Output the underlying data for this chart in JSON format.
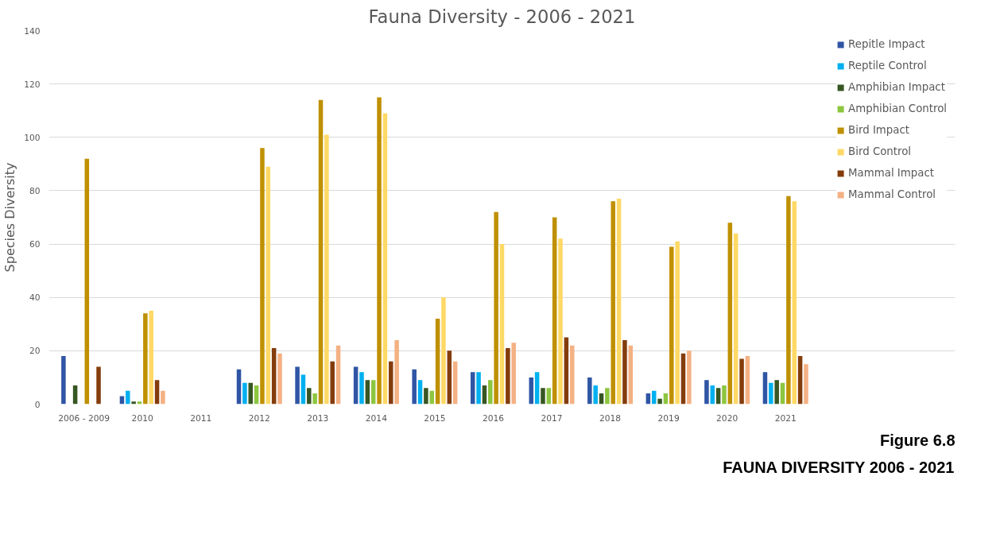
{
  "chart_data": {
    "type": "bar",
    "title": "Fauna Diversity - 2006 - 2021",
    "ylabel": "Species Diversity",
    "categories": [
      "2006 - 2009",
      "2010",
      "2011",
      "2012",
      "2013",
      "2014",
      "2015",
      "2016",
      "2017",
      "2018",
      "2019",
      "2020",
      "2021"
    ],
    "series": [
      {
        "name": "Repitle Impact",
        "color": "#2f55a4",
        "values": [
          18,
          3,
          0,
          13,
          14,
          14,
          13,
          12,
          10,
          10,
          4,
          9,
          12
        ]
      },
      {
        "name": "Reptile Control",
        "color": "#00b0f0",
        "values": [
          0,
          5,
          0,
          8,
          11,
          12,
          9,
          12,
          12,
          7,
          5,
          7,
          8
        ]
      },
      {
        "name": "Amphibian Impact",
        "color": "#375623",
        "values": [
          7,
          1,
          0,
          8,
          6,
          9,
          6,
          7,
          6,
          4,
          2,
          6,
          9
        ]
      },
      {
        "name": "Amphibian Control",
        "color": "#8dc63f",
        "values": [
          0,
          1,
          0,
          7,
          4,
          9,
          5,
          9,
          6,
          6,
          4,
          7,
          8
        ]
      },
      {
        "name": "Bird Impact",
        "color": "#bf9000",
        "values": [
          92,
          34,
          0,
          96,
          114,
          115,
          32,
          72,
          70,
          76,
          59,
          68,
          78
        ]
      },
      {
        "name": "Bird Control",
        "color": "#ffd966",
        "values": [
          0,
          35,
          0,
          89,
          101,
          109,
          40,
          60,
          62,
          77,
          61,
          64,
          76
        ]
      },
      {
        "name": "Mammal Impact",
        "color": "#843c0c",
        "values": [
          14,
          9,
          0,
          21,
          16,
          16,
          20,
          21,
          25,
          24,
          19,
          17,
          18
        ]
      },
      {
        "name": "Mammal Control",
        "color": "#f4b183",
        "values": [
          0,
          5,
          0,
          19,
          22,
          24,
          16,
          23,
          22,
          22,
          20,
          18,
          15
        ]
      }
    ],
    "ylim": [
      0,
      140
    ],
    "yticks": [
      0,
      20,
      40,
      60,
      80,
      100,
      120,
      140
    ],
    "grid": "y",
    "legend": "right",
    "annotations": [
      "Figure 6.8",
      "FAUNA DIVERSITY 2006 - 2021"
    ]
  }
}
